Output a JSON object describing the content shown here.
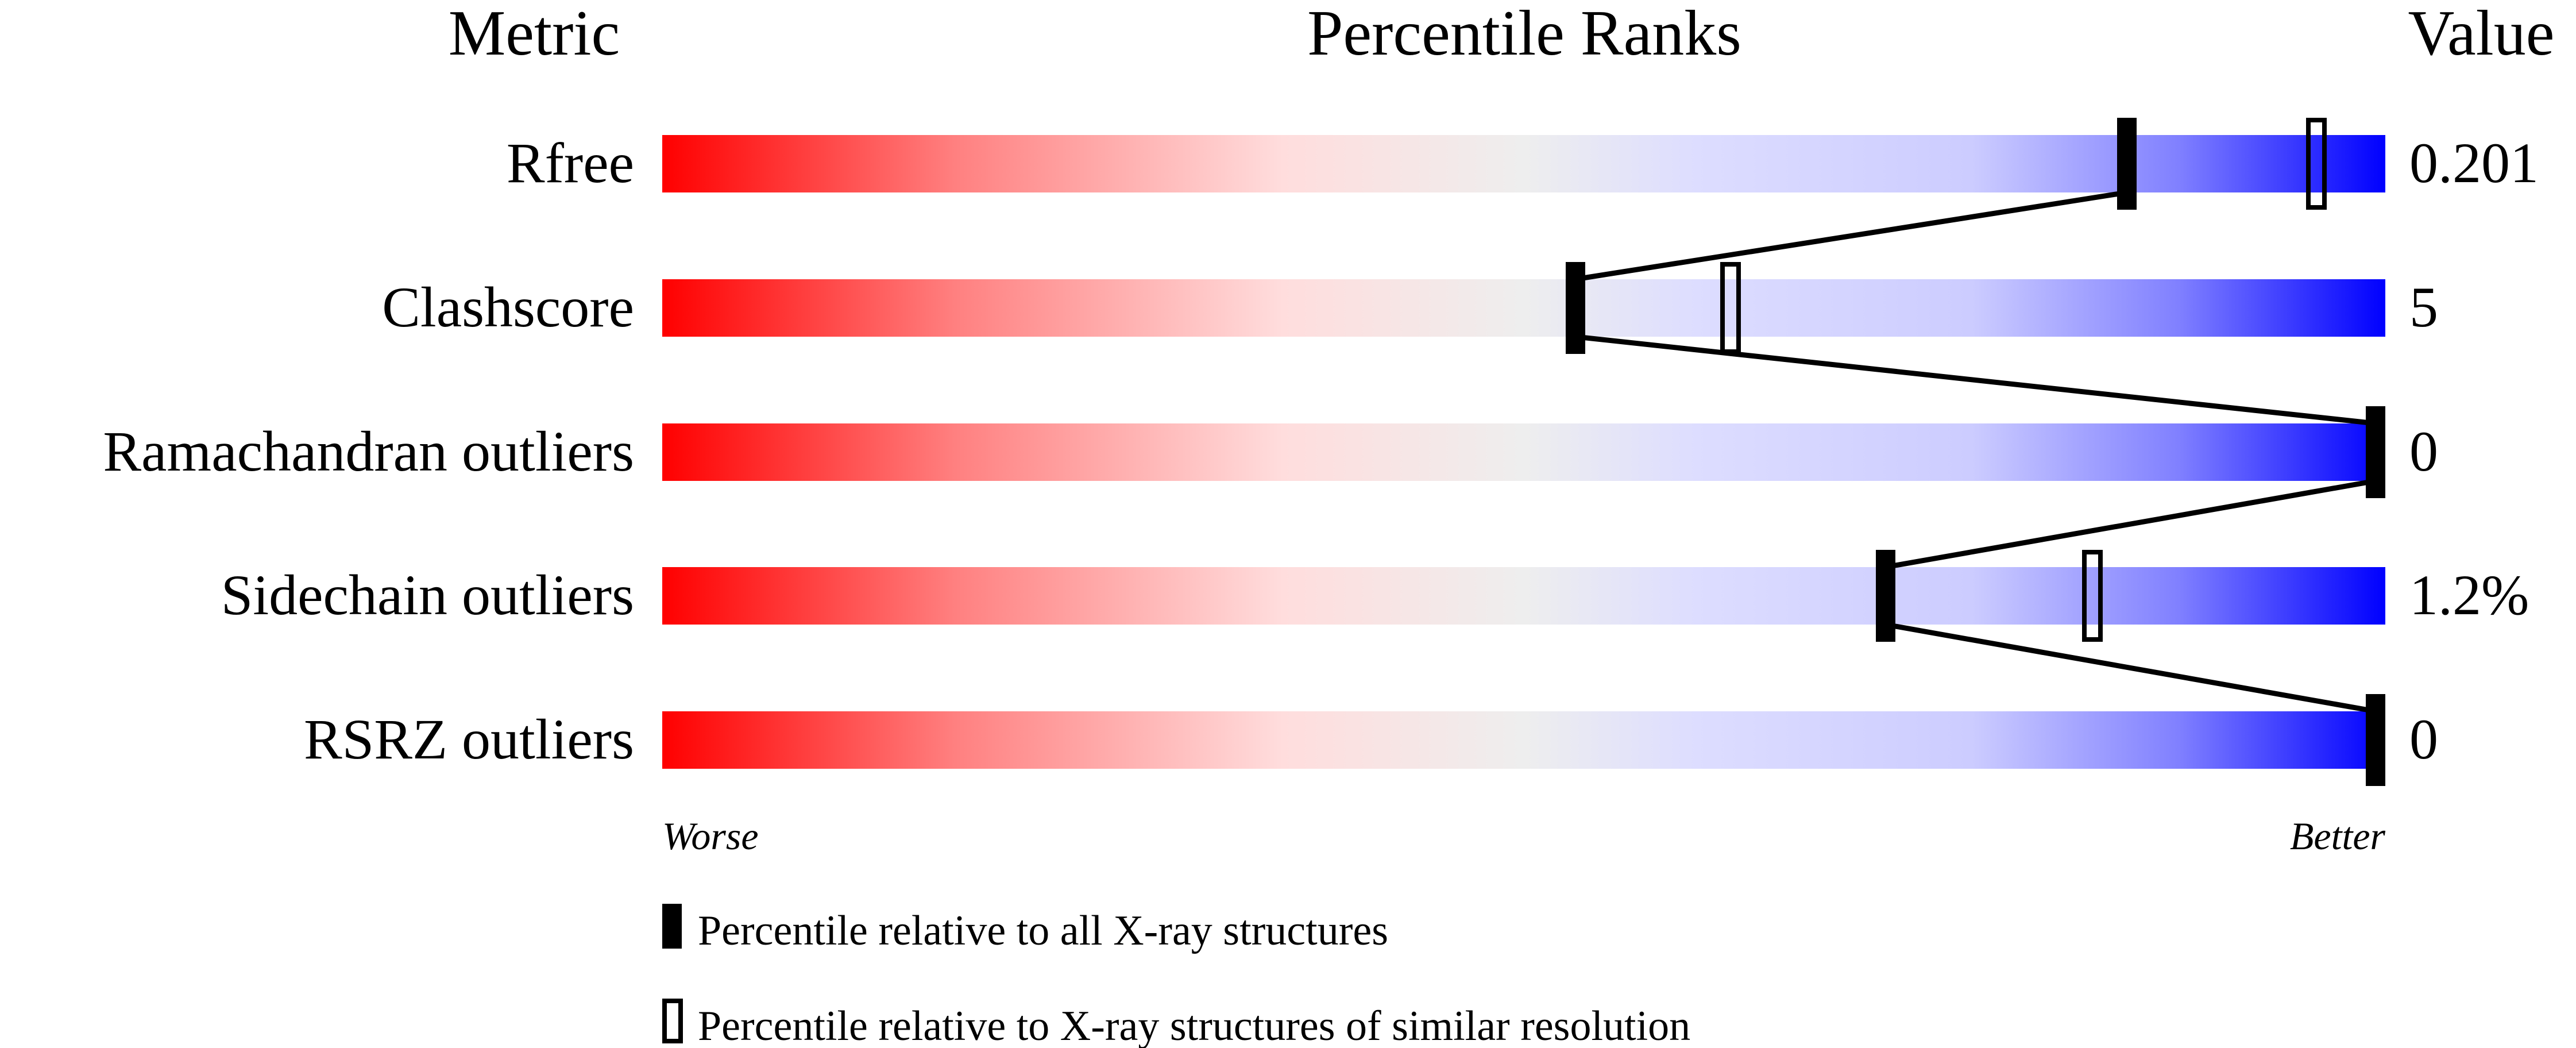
{
  "chart_data": {
    "type": "percentile-bar",
    "headers": {
      "metric": "Metric",
      "ranks": "Percentile Ranks",
      "value": "Value"
    },
    "xlim": [
      0,
      100
    ],
    "metrics": [
      {
        "name": "Rfree",
        "value": "0.201",
        "percentile_all": 85,
        "percentile_similar": 96
      },
      {
        "name": "Clashscore",
        "value": "5",
        "percentile_all": 53,
        "percentile_similar": 62
      },
      {
        "name": "Ramachandran outliers",
        "value": "0",
        "percentile_all": 100,
        "percentile_similar": null
      },
      {
        "name": "Sidechain outliers",
        "value": "1.2%",
        "percentile_all": 71,
        "percentile_similar": 83
      },
      {
        "name": "RSRZ outliers",
        "value": "0",
        "percentile_all": 100,
        "percentile_similar": null
      }
    ],
    "axis_labels": {
      "left": "Worse",
      "right": "Better"
    },
    "legend": {
      "all": "Percentile relative to all X-ray structures",
      "similar": "Percentile relative to X-ray structures of similar resolution"
    },
    "colors": {
      "worse": "#ff0000",
      "middle": "#eeeeee",
      "better": "#0000ff",
      "marker": "#000000"
    }
  }
}
